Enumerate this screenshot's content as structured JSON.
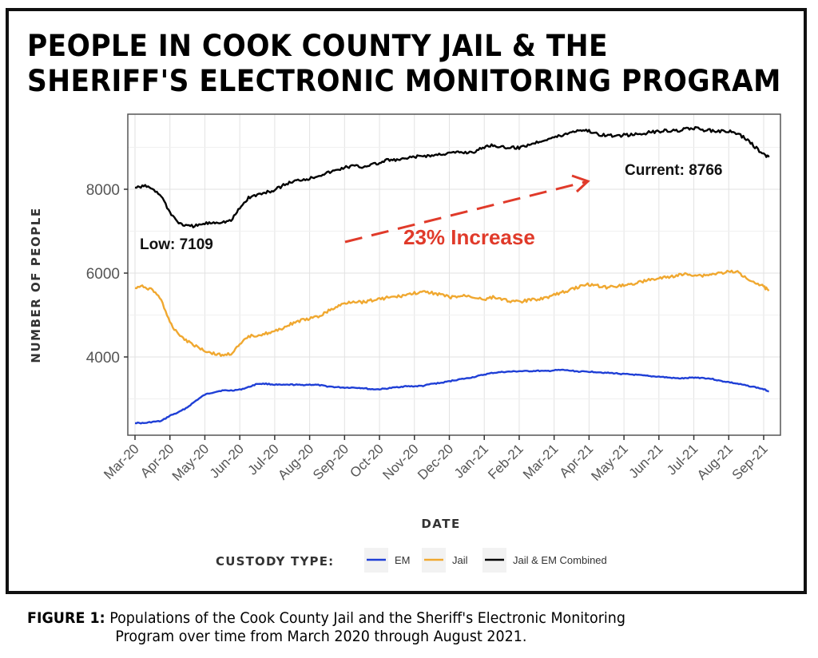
{
  "figure": {
    "title_line1": "PEOPLE IN COOK COUNTY JAIL & THE",
    "title_line2": "SHERIFF'S ELECTRONIC MONITORING PROGRAM",
    "caption_label": "FIGURE 1:",
    "caption_line1": "Populations of the Cook County Jail and the Sheriff's Electronic Monitoring",
    "caption_line2": "Program over time from March 2020 through August 2021."
  },
  "chart_data": {
    "type": "line",
    "title": "PEOPLE IN COOK COUNTY JAIL & THE SHERIFF'S ELECTRONIC MONITORING PROGRAM",
    "xlabel": "DATE",
    "ylabel": "NUMBER OF PEOPLE",
    "x_unit": "months since Mar-20",
    "xlim": [
      -0.2,
      18.3
    ],
    "ylim": [
      2200,
      9800
    ],
    "yticks": [
      4000,
      6000,
      8000
    ],
    "ytick_labels": [
      "4000",
      "6000",
      "8000"
    ],
    "xticks": [
      0,
      1,
      2,
      3,
      4,
      5,
      6,
      7,
      8,
      9,
      10,
      11,
      12,
      13,
      14,
      15,
      16,
      17,
      18
    ],
    "xtick_labels": [
      "Mar-20",
      "Apr-20",
      "May-20",
      "Jun-20",
      "Jul-20",
      "Aug-20",
      "Sep-20",
      "Oct-20",
      "Nov-20",
      "Dec-20",
      "Jan-21",
      "Feb-21",
      "Mar-21",
      "Apr-21",
      "May-21",
      "Jun-21",
      "Jul-21",
      "Aug-21",
      "Sep-21"
    ],
    "grid": true,
    "legend": {
      "title": "CUSTODY TYPE:",
      "position": "bottom",
      "entries": [
        {
          "name": "EM",
          "color": "#1f3fd6"
        },
        {
          "name": "Jail",
          "color": "#f0a830"
        },
        {
          "name": "Jail & EM Combined",
          "color": "#000000"
        }
      ]
    },
    "x": [
      0,
      0.25,
      0.5,
      0.75,
      1,
      1.25,
      1.5,
      1.75,
      2,
      2.25,
      2.5,
      2.75,
      3,
      3.25,
      3.5,
      3.75,
      4,
      4.25,
      4.5,
      4.75,
      5,
      5.25,
      5.5,
      5.75,
      6,
      6.25,
      6.5,
      6.75,
      7,
      7.25,
      7.5,
      7.75,
      8,
      8.25,
      8.5,
      8.75,
      9,
      9.25,
      9.5,
      9.75,
      10,
      10.25,
      10.5,
      10.75,
      11,
      11.25,
      11.5,
      11.75,
      12,
      12.25,
      12.5,
      12.75,
      13,
      13.25,
      13.5,
      13.75,
      14,
      14.25,
      14.5,
      14.75,
      15,
      15.25,
      15.5,
      15.75,
      16,
      16.25,
      16.5,
      16.75,
      17,
      17.25,
      17.5,
      17.75,
      18,
      18.15
    ],
    "series": [
      {
        "name": "Jail & EM Combined",
        "color": "#000000",
        "values": [
          8030,
          8080,
          8020,
          7850,
          7450,
          7200,
          7120,
          7130,
          7180,
          7210,
          7220,
          7250,
          7550,
          7800,
          7870,
          7920,
          7980,
          8100,
          8180,
          8230,
          8260,
          8330,
          8390,
          8450,
          8520,
          8560,
          8530,
          8590,
          8620,
          8700,
          8690,
          8730,
          8770,
          8800,
          8800,
          8840,
          8860,
          8880,
          8880,
          8900,
          9010,
          9060,
          9000,
          8990,
          8990,
          9060,
          9120,
          9190,
          9240,
          9290,
          9370,
          9420,
          9390,
          9310,
          9290,
          9270,
          9290,
          9300,
          9320,
          9360,
          9380,
          9400,
          9390,
          9440,
          9460,
          9420,
          9400,
          9390,
          9380,
          9330,
          9200,
          9010,
          8830,
          8766
        ]
      },
      {
        "name": "Jail",
        "color": "#f0a830",
        "values": [
          5640,
          5680,
          5600,
          5380,
          4800,
          4550,
          4380,
          4260,
          4150,
          4080,
          4040,
          4080,
          4280,
          4490,
          4520,
          4560,
          4600,
          4700,
          4800,
          4870,
          4910,
          4960,
          5080,
          5180,
          5280,
          5330,
          5310,
          5350,
          5380,
          5420,
          5430,
          5480,
          5520,
          5540,
          5530,
          5490,
          5420,
          5440,
          5460,
          5420,
          5380,
          5420,
          5390,
          5330,
          5310,
          5350,
          5380,
          5410,
          5480,
          5540,
          5620,
          5680,
          5730,
          5700,
          5660,
          5690,
          5720,
          5740,
          5800,
          5840,
          5870,
          5900,
          5940,
          5970,
          5960,
          5940,
          5970,
          6000,
          6030,
          6020,
          5900,
          5780,
          5680,
          5580
        ]
      },
      {
        "name": "EM",
        "color": "#1f3fd6",
        "values": [
          2430,
          2420,
          2450,
          2470,
          2600,
          2680,
          2800,
          2960,
          3100,
          3160,
          3200,
          3200,
          3220,
          3280,
          3360,
          3360,
          3340,
          3330,
          3340,
          3330,
          3340,
          3330,
          3300,
          3280,
          3270,
          3270,
          3260,
          3230,
          3230,
          3250,
          3280,
          3300,
          3300,
          3310,
          3360,
          3380,
          3420,
          3460,
          3490,
          3530,
          3580,
          3620,
          3640,
          3650,
          3660,
          3660,
          3670,
          3660,
          3680,
          3690,
          3670,
          3650,
          3650,
          3640,
          3620,
          3610,
          3590,
          3580,
          3560,
          3540,
          3530,
          3510,
          3490,
          3490,
          3510,
          3500,
          3480,
          3430,
          3400,
          3360,
          3320,
          3280,
          3230,
          3180
        ]
      }
    ],
    "annotations": [
      {
        "text": "Low: 7109",
        "series": "Jail & EM Combined",
        "x": 1.7,
        "y": 7109
      },
      {
        "text": "Current: 8766",
        "series": "Jail & EM Combined",
        "x": 18.15,
        "y": 8766
      },
      {
        "text": "23% Increase",
        "color": "#e03a2a",
        "arrow_from": [
          6.0,
          6750
        ],
        "arrow_to": [
          13.0,
          8200
        ]
      }
    ]
  }
}
